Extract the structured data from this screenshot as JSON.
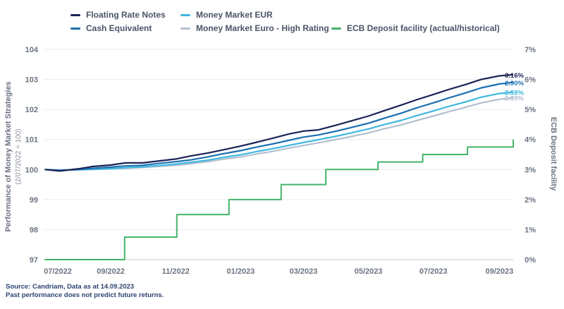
{
  "footer": {
    "source": "Source: Candriam, Data as at 14.09.2023",
    "disclaimer": "Past performance does not predict future returns."
  },
  "colors": {
    "floating": "#1c2355",
    "cash": "#1a6fb0",
    "mmeur": "#3fb8e0",
    "mmhigh": "#b3bfd0",
    "ecb": "#43b36a",
    "axis_text": "#6b7480",
    "grid": "#e8ebef"
  },
  "chart_data": {
    "type": "line",
    "x_axis": {
      "ticks": [
        "07/2022",
        "09/2022",
        "11/2022",
        "01/2023",
        "03/2023",
        "05/2023",
        "07/2023",
        "09/2023"
      ],
      "range": [
        "2022-06-30",
        "2023-09-14"
      ]
    },
    "y_axis_left": {
      "label": "Performance of Money Market Strategies",
      "sublabel": "(2/07/2022 = 100)",
      "ticks": [
        "97",
        "98",
        "99",
        "100",
        "101",
        "102",
        "103",
        "104"
      ],
      "range": [
        97,
        104
      ]
    },
    "y_axis_right": {
      "label": "ECB Deposit facility",
      "ticks": [
        "0%",
        "1%",
        "2%",
        "3%",
        "4%",
        "5%",
        "6%",
        "7%"
      ],
      "range": [
        0,
        7
      ]
    },
    "grid": true,
    "legend_placement": "top",
    "series": [
      {
        "name": "Floating Rate Notes",
        "axis": "left",
        "color": "#1c2355",
        "end_label": "3.16%",
        "points": [
          [
            "2022-07-01",
            100.0
          ],
          [
            "2022-07-15",
            99.95
          ],
          [
            "2022-08-01",
            100.02
          ],
          [
            "2022-08-15",
            100.1
          ],
          [
            "2022-09-01",
            100.15
          ],
          [
            "2022-09-15",
            100.22
          ],
          [
            "2022-10-01",
            100.22
          ],
          [
            "2022-10-15",
            100.28
          ],
          [
            "2022-11-01",
            100.35
          ],
          [
            "2022-11-15",
            100.45
          ],
          [
            "2022-12-01",
            100.55
          ],
          [
            "2022-12-15",
            100.65
          ],
          [
            "2023-01-01",
            100.78
          ],
          [
            "2023-01-15",
            100.9
          ],
          [
            "2023-02-01",
            101.05
          ],
          [
            "2023-02-15",
            101.18
          ],
          [
            "2023-03-01",
            101.28
          ],
          [
            "2023-03-15",
            101.32
          ],
          [
            "2023-04-01",
            101.48
          ],
          [
            "2023-04-15",
            101.62
          ],
          [
            "2023-05-01",
            101.78
          ],
          [
            "2023-05-15",
            101.95
          ],
          [
            "2023-06-01",
            102.15
          ],
          [
            "2023-06-15",
            102.32
          ],
          [
            "2023-07-01",
            102.5
          ],
          [
            "2023-07-15",
            102.66
          ],
          [
            "2023-08-01",
            102.84
          ],
          [
            "2023-08-15",
            103.0
          ],
          [
            "2023-09-01",
            103.12
          ],
          [
            "2023-09-14",
            103.16
          ]
        ]
      },
      {
        "name": "Cash Equivalent",
        "axis": "left",
        "color": "#1a6fb0",
        "end_label": "2.90%",
        "points": [
          [
            "2022-07-01",
            100.0
          ],
          [
            "2022-07-15",
            99.97
          ],
          [
            "2022-08-01",
            100.0
          ],
          [
            "2022-08-15",
            100.04
          ],
          [
            "2022-09-01",
            100.08
          ],
          [
            "2022-09-15",
            100.12
          ],
          [
            "2022-10-01",
            100.14
          ],
          [
            "2022-10-15",
            100.2
          ],
          [
            "2022-11-01",
            100.26
          ],
          [
            "2022-11-15",
            100.32
          ],
          [
            "2022-12-01",
            100.42
          ],
          [
            "2022-12-15",
            100.52
          ],
          [
            "2023-01-01",
            100.63
          ],
          [
            "2023-01-15",
            100.74
          ],
          [
            "2023-02-01",
            100.86
          ],
          [
            "2023-02-15",
            100.97
          ],
          [
            "2023-03-01",
            101.08
          ],
          [
            "2023-03-15",
            101.15
          ],
          [
            "2023-04-01",
            101.28
          ],
          [
            "2023-04-15",
            101.4
          ],
          [
            "2023-05-01",
            101.54
          ],
          [
            "2023-05-15",
            101.7
          ],
          [
            "2023-06-01",
            101.88
          ],
          [
            "2023-06-15",
            102.05
          ],
          [
            "2023-07-01",
            102.22
          ],
          [
            "2023-07-15",
            102.38
          ],
          [
            "2023-08-01",
            102.56
          ],
          [
            "2023-08-15",
            102.72
          ],
          [
            "2023-09-01",
            102.85
          ],
          [
            "2023-09-14",
            102.9
          ]
        ]
      },
      {
        "name": "Money Market EUR",
        "axis": "left",
        "color": "#3fb8e0",
        "end_label": "2.58%",
        "points": [
          [
            "2022-07-01",
            100.0
          ],
          [
            "2022-07-15",
            99.98
          ],
          [
            "2022-08-01",
            99.99
          ],
          [
            "2022-08-15",
            100.01
          ],
          [
            "2022-09-01",
            100.03
          ],
          [
            "2022-09-15",
            100.06
          ],
          [
            "2022-10-01",
            100.09
          ],
          [
            "2022-10-15",
            100.13
          ],
          [
            "2022-11-01",
            100.18
          ],
          [
            "2022-11-15",
            100.24
          ],
          [
            "2022-12-01",
            100.31
          ],
          [
            "2022-12-15",
            100.4
          ],
          [
            "2023-01-01",
            100.49
          ],
          [
            "2023-01-15",
            100.59
          ],
          [
            "2023-02-01",
            100.7
          ],
          [
            "2023-02-15",
            100.8
          ],
          [
            "2023-03-01",
            100.9
          ],
          [
            "2023-03-15",
            100.99
          ],
          [
            "2023-04-01",
            101.11
          ],
          [
            "2023-04-15",
            101.22
          ],
          [
            "2023-05-01",
            101.35
          ],
          [
            "2023-05-15",
            101.49
          ],
          [
            "2023-06-01",
            101.64
          ],
          [
            "2023-06-15",
            101.79
          ],
          [
            "2023-07-01",
            101.95
          ],
          [
            "2023-07-15",
            102.1
          ],
          [
            "2023-08-01",
            102.26
          ],
          [
            "2023-08-15",
            102.41
          ],
          [
            "2023-09-01",
            102.53
          ],
          [
            "2023-09-14",
            102.58
          ]
        ]
      },
      {
        "name": "Money Market Euro - High Rating",
        "axis": "left",
        "color": "#b3bfd0",
        "end_label": "2.39%",
        "points": [
          [
            "2022-07-01",
            100.0
          ],
          [
            "2022-07-15",
            99.99
          ],
          [
            "2022-08-01",
            99.99
          ],
          [
            "2022-08-15",
            100.0
          ],
          [
            "2022-09-01",
            100.02
          ],
          [
            "2022-09-15",
            100.04
          ],
          [
            "2022-10-01",
            100.07
          ],
          [
            "2022-10-15",
            100.1
          ],
          [
            "2022-11-01",
            100.14
          ],
          [
            "2022-11-15",
            100.19
          ],
          [
            "2022-12-01",
            100.26
          ],
          [
            "2022-12-15",
            100.34
          ],
          [
            "2023-01-01",
            100.42
          ],
          [
            "2023-01-15",
            100.51
          ],
          [
            "2023-02-01",
            100.61
          ],
          [
            "2023-02-15",
            100.71
          ],
          [
            "2023-03-01",
            100.8
          ],
          [
            "2023-03-15",
            100.89
          ],
          [
            "2023-04-01",
            101.0
          ],
          [
            "2023-04-15",
            101.1
          ],
          [
            "2023-05-01",
            101.22
          ],
          [
            "2023-05-15",
            101.35
          ],
          [
            "2023-06-01",
            101.49
          ],
          [
            "2023-06-15",
            101.63
          ],
          [
            "2023-07-01",
            101.78
          ],
          [
            "2023-07-15",
            101.92
          ],
          [
            "2023-08-01",
            102.08
          ],
          [
            "2023-08-15",
            102.22
          ],
          [
            "2023-09-01",
            102.34
          ],
          [
            "2023-09-14",
            102.39
          ]
        ]
      },
      {
        "name": "ECB Deposit facility (actual/historical)",
        "axis": "right",
        "color": "#43b36a",
        "step": true,
        "points": [
          [
            "2022-07-01",
            0.0
          ],
          [
            "2022-09-14",
            0.75
          ],
          [
            "2022-11-02",
            1.5
          ],
          [
            "2022-12-21",
            2.0
          ],
          [
            "2023-02-08",
            2.5
          ],
          [
            "2023-03-22",
            3.0
          ],
          [
            "2023-05-10",
            3.25
          ],
          [
            "2023-06-21",
            3.5
          ],
          [
            "2023-08-02",
            3.75
          ],
          [
            "2023-09-14",
            4.0
          ]
        ]
      }
    ]
  }
}
